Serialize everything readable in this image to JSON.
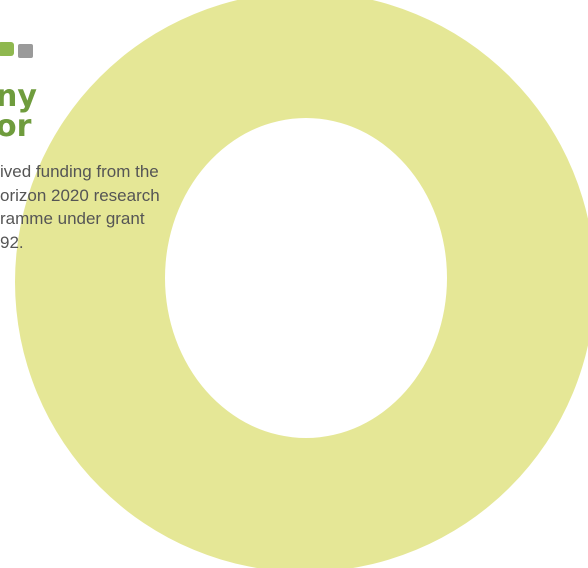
{
  "logo": {
    "line1": "ny",
    "line2": "or"
  },
  "funding": {
    "lines": [
      "ived funding from the",
      "orizon 2020 research",
      "ramme under grant",
      "92."
    ]
  }
}
